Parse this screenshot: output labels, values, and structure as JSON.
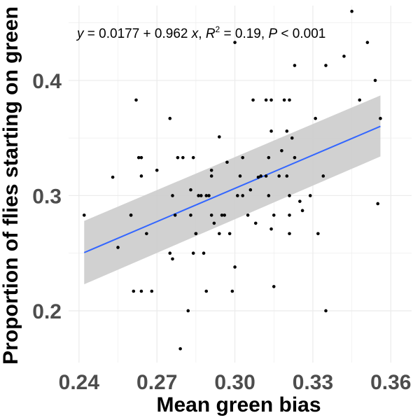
{
  "chart_data": {
    "type": "scatter",
    "xlabel": "Mean green bias",
    "ylabel": "Proportion of flies starting on green",
    "xlim": [
      0.236,
      0.368
    ],
    "ylim": [
      0.155,
      0.465
    ],
    "x_ticks": [
      0.24,
      0.27,
      0.3,
      0.33,
      0.36
    ],
    "x_tick_labels": [
      "0.24",
      "0.27",
      "0.30",
      "0.33",
      "0.36"
    ],
    "y_ticks": [
      0.2,
      0.3,
      0.4
    ],
    "y_tick_labels": [
      "0.2",
      "0.3",
      "0.4"
    ],
    "grid": true,
    "legend": "none",
    "annotation": {
      "y_var": "y",
      "eq_part1": " = 0.0177 + 0.962 ",
      "x_var": "x",
      "eq_part2": ", ",
      "r2_var": "R",
      "r2_exp": "2",
      "r2_part": " = 0.19, ",
      "p_var": "P",
      "p_part": " < 0.001"
    },
    "fit": {
      "intercept": 0.0177,
      "slope": 0.962,
      "x_range": [
        0.242,
        0.356
      ],
      "ci_lower": [
        0.223,
        0.334
      ],
      "ci_upper": [
        0.278,
        0.387
      ]
    },
    "points": [
      [
        0.242,
        0.283
      ],
      [
        0.253,
        0.316
      ],
      [
        0.255,
        0.255
      ],
      [
        0.26,
        0.283
      ],
      [
        0.26,
        0.283
      ],
      [
        0.261,
        0.217
      ],
      [
        0.262,
        0.383
      ],
      [
        0.263,
        0.333
      ],
      [
        0.264,
        0.333
      ],
      [
        0.264,
        0.317
      ],
      [
        0.264,
        0.217
      ],
      [
        0.266,
        0.267
      ],
      [
        0.268,
        0.217
      ],
      [
        0.27,
        0.322
      ],
      [
        0.275,
        0.367
      ],
      [
        0.275,
        0.25
      ],
      [
        0.276,
        0.3
      ],
      [
        0.276,
        0.245
      ],
      [
        0.277,
        0.283
      ],
      [
        0.278,
        0.333
      ],
      [
        0.279,
        0.167
      ],
      [
        0.28,
        0.333
      ],
      [
        0.282,
        0.2
      ],
      [
        0.283,
        0.305
      ],
      [
        0.283,
        0.283
      ],
      [
        0.284,
        0.333
      ],
      [
        0.284,
        0.25
      ],
      [
        0.285,
        0.267
      ],
      [
        0.285,
        0.267
      ],
      [
        0.286,
        0.3
      ],
      [
        0.287,
        0.3
      ],
      [
        0.288,
        0.25
      ],
      [
        0.289,
        0.3
      ],
      [
        0.289,
        0.217
      ],
      [
        0.29,
        0.3
      ],
      [
        0.291,
        0.317
      ],
      [
        0.291,
        0.322
      ],
      [
        0.291,
        0.283
      ],
      [
        0.292,
        0.276
      ],
      [
        0.294,
        0.267
      ],
      [
        0.294,
        0.351
      ],
      [
        0.295,
        0.283
      ],
      [
        0.296,
        0.283
      ],
      [
        0.297,
        0.329
      ],
      [
        0.298,
        0.267
      ],
      [
        0.299,
        0.217
      ],
      [
        0.3,
        0.238
      ],
      [
        0.3,
        0.433
      ],
      [
        0.301,
        0.3
      ],
      [
        0.302,
        0.317
      ],
      [
        0.303,
        0.3
      ],
      [
        0.303,
        0.333
      ],
      [
        0.305,
        0.283
      ],
      [
        0.306,
        0.305
      ],
      [
        0.307,
        0.383
      ],
      [
        0.308,
        0.276
      ],
      [
        0.309,
        0.316
      ],
      [
        0.31,
        0.317
      ],
      [
        0.312,
        0.383
      ],
      [
        0.312,
        0.317
      ],
      [
        0.313,
        0.333
      ],
      [
        0.313,
        0.3
      ],
      [
        0.314,
        0.356
      ],
      [
        0.314,
        0.383
      ],
      [
        0.314,
        0.271
      ],
      [
        0.315,
        0.221
      ],
      [
        0.315,
        0.283
      ],
      [
        0.317,
        0.317
      ],
      [
        0.318,
        0.339
      ],
      [
        0.319,
        0.383
      ],
      [
        0.32,
        0.317
      ],
      [
        0.32,
        0.356
      ],
      [
        0.321,
        0.283
      ],
      [
        0.321,
        0.267
      ],
      [
        0.321,
        0.383
      ],
      [
        0.321,
        0.3
      ],
      [
        0.322,
        0.35
      ],
      [
        0.323,
        0.333
      ],
      [
        0.323,
        0.413
      ],
      [
        0.325,
        0.295
      ],
      [
        0.326,
        0.287
      ],
      [
        0.329,
        0.3
      ],
      [
        0.331,
        0.367
      ],
      [
        0.332,
        0.267
      ],
      [
        0.334,
        0.317
      ],
      [
        0.335,
        0.2
      ],
      [
        0.335,
        0.413
      ],
      [
        0.342,
        0.421
      ],
      [
        0.345,
        0.46
      ],
      [
        0.348,
        0.383
      ],
      [
        0.351,
        0.433
      ],
      [
        0.354,
        0.4
      ],
      [
        0.355,
        0.293
      ],
      [
        0.356,
        0.367
      ]
    ]
  }
}
